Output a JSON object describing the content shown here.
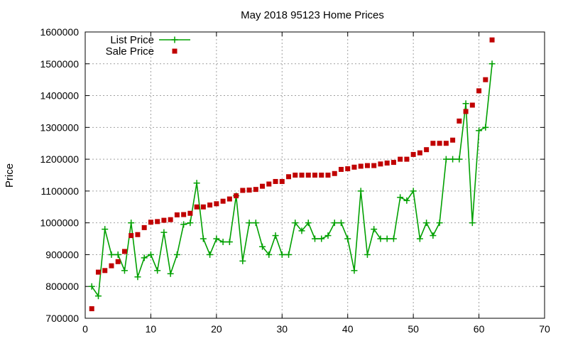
{
  "chart_data": {
    "type": "line",
    "title": "May 2018 95123 Home Prices",
    "xlabel": "",
    "ylabel": "Price",
    "xlim": [
      0,
      70
    ],
    "ylim": [
      700000,
      1600000
    ],
    "xticks": [
      0,
      10,
      20,
      30,
      40,
      50,
      60,
      70
    ],
    "yticks": [
      700000,
      800000,
      900000,
      1000000,
      1100000,
      1200000,
      1300000,
      1400000,
      1500000,
      1600000
    ],
    "grid": true,
    "legend_position": "top-left",
    "colors": {
      "list": "#00a000",
      "sale": "#c00000"
    },
    "series": [
      {
        "name": "List Price",
        "style": "line-plus",
        "x": [
          1,
          2,
          3,
          4,
          5,
          6,
          7,
          8,
          9,
          10,
          11,
          12,
          13,
          14,
          15,
          16,
          17,
          18,
          19,
          20,
          21,
          22,
          23,
          24,
          25,
          26,
          27,
          28,
          29,
          30,
          31,
          32,
          33,
          34,
          35,
          36,
          37,
          38,
          39,
          40,
          41,
          42,
          43,
          44,
          45,
          46,
          47,
          48,
          49,
          50,
          51,
          52,
          53,
          54,
          55,
          56,
          57,
          58,
          59,
          60,
          61,
          62
        ],
        "values": [
          800000,
          770000,
          980000,
          900000,
          900000,
          850000,
          1000000,
          830000,
          890000,
          900000,
          850000,
          970000,
          840000,
          900000,
          995000,
          1000000,
          1125000,
          950000,
          900000,
          950000,
          940000,
          940000,
          1085000,
          880000,
          1000000,
          1000000,
          925000,
          900000,
          960000,
          900000,
          900000,
          1000000,
          975000,
          1000000,
          950000,
          950000,
          960000,
          1000000,
          1000000,
          950000,
          850000,
          1100000,
          900000,
          980000,
          950000,
          950000,
          950000,
          1080000,
          1070000,
          1100000,
          950000,
          1000000,
          960000,
          1000000,
          1200000,
          1200000,
          1200000,
          1375000,
          1000000,
          1290000,
          1300000,
          1500000
        ]
      },
      {
        "name": "Sale Price",
        "style": "square",
        "x": [
          1,
          2,
          3,
          4,
          5,
          6,
          7,
          8,
          9,
          10,
          11,
          12,
          13,
          14,
          15,
          16,
          17,
          18,
          19,
          20,
          21,
          22,
          23,
          24,
          25,
          26,
          27,
          28,
          29,
          30,
          31,
          32,
          33,
          34,
          35,
          36,
          37,
          38,
          39,
          40,
          41,
          42,
          43,
          44,
          45,
          46,
          47,
          48,
          49,
          50,
          51,
          52,
          53,
          54,
          55,
          56,
          57,
          58,
          59,
          60,
          61,
          62
        ],
        "values": [
          730000,
          845000,
          850000,
          865000,
          878000,
          910000,
          960000,
          963000,
          985000,
          1002000,
          1004000,
          1008000,
          1010000,
          1025000,
          1026000,
          1030000,
          1050000,
          1050000,
          1056000,
          1060000,
          1068000,
          1075000,
          1085000,
          1102000,
          1103000,
          1105000,
          1115000,
          1122000,
          1130000,
          1130000,
          1145000,
          1150000,
          1150000,
          1150000,
          1150000,
          1150000,
          1150000,
          1155000,
          1168000,
          1170000,
          1175000,
          1178000,
          1180000,
          1180000,
          1185000,
          1188000,
          1190000,
          1200000,
          1200000,
          1215000,
          1220000,
          1230000,
          1250000,
          1250000,
          1250000,
          1260000,
          1320000,
          1350000,
          1370000,
          1415000,
          1450000,
          1575000
        ]
      }
    ]
  }
}
